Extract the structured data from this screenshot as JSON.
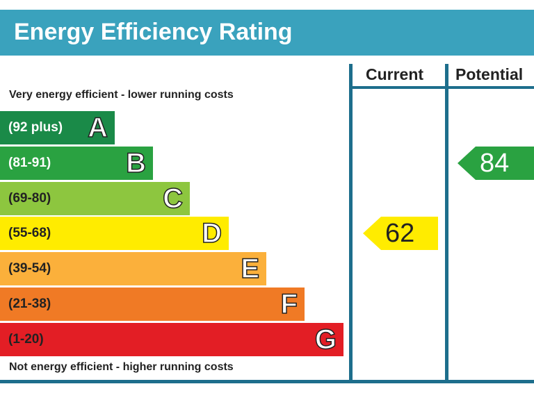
{
  "header": {
    "title": "Energy Efficiency Rating"
  },
  "columns": {
    "current": "Current",
    "potential": "Potential"
  },
  "captions": {
    "top": "Very energy efficient - lower running costs",
    "bottom": "Not energy efficient - higher running costs"
  },
  "chart_data": {
    "type": "bar",
    "title": "Energy Efficiency Rating",
    "bands": [
      {
        "letter": "A",
        "range": "(92 plus)",
        "color": "#1a8a48",
        "text_color": "#ffffff"
      },
      {
        "letter": "B",
        "range": "(81-91)",
        "color": "#2aa241",
        "text_color": "#ffffff"
      },
      {
        "letter": "C",
        "range": "(69-80)",
        "color": "#8dc63f",
        "text_color": "#222222"
      },
      {
        "letter": "D",
        "range": "(55-68)",
        "color": "#ffec00",
        "text_color": "#222222"
      },
      {
        "letter": "E",
        "range": "(39-54)",
        "color": "#fbb03b",
        "text_color": "#222222"
      },
      {
        "letter": "F",
        "range": "(21-38)",
        "color": "#f07a25",
        "text_color": "#222222"
      },
      {
        "letter": "G",
        "range": "(1-20)",
        "color": "#e31e25",
        "text_color": "#222222"
      }
    ],
    "current": {
      "value": 62,
      "band": "D",
      "color": "#ffec00",
      "text_color": "#222222"
    },
    "potential": {
      "value": 84,
      "band": "B",
      "color": "#2aa241",
      "text_color": "#ffffff"
    }
  }
}
